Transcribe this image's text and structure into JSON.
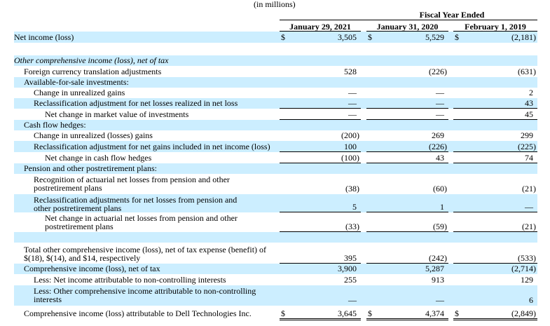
{
  "units_note": "(in millions)",
  "header": {
    "group_label": "Fiscal Year Ended",
    "columns": [
      "January 29, 2021",
      "January 31, 2020",
      "February 1, 2019"
    ]
  },
  "colors": {
    "band": "#cceeff",
    "text": "#000000"
  },
  "rows": [
    {
      "label": "Net income (loss)",
      "values": [
        "3,505",
        "5,529",
        "(2,181)"
      ],
      "currency": true
    },
    {
      "label": "",
      "values": [
        "",
        "",
        ""
      ]
    },
    {
      "label": "Other comprehensive income (loss), net of tax",
      "values": [
        "",
        "",
        ""
      ],
      "italic": true
    },
    {
      "label": "Foreign currency translation adjustments",
      "values": [
        "528",
        "(226)",
        "(631)"
      ]
    },
    {
      "label": "Available-for-sale investments:",
      "values": [
        "",
        "",
        ""
      ]
    },
    {
      "label": "Change in unrealized gains",
      "values": [
        "—",
        "—",
        "2"
      ]
    },
    {
      "label": "Reclassification adjustment for net losses realized in net loss",
      "values": [
        "—",
        "—",
        "43"
      ]
    },
    {
      "label": "Net change in market value of investments",
      "values": [
        "—",
        "—",
        "45"
      ]
    },
    {
      "label": "Cash flow hedges:",
      "values": [
        "",
        "",
        ""
      ]
    },
    {
      "label": "Change in unrealized (losses) gains",
      "values": [
        "(200)",
        "269",
        "299"
      ]
    },
    {
      "label": "Reclassification adjustment for net gains included in net income (loss)",
      "values": [
        "100",
        "(226)",
        "(225)"
      ]
    },
    {
      "label": "Net change in cash flow hedges",
      "values": [
        "(100)",
        "43",
        "74"
      ]
    },
    {
      "label": "Pension and other postretirement plans:",
      "values": [
        "",
        "",
        ""
      ]
    },
    {
      "label": "Recognition of actuarial net losses from pension and other postretirement plans",
      "values": [
        "(38)",
        "(60)",
        "(21)"
      ]
    },
    {
      "label": "Reclassification adjustments for net losses from pension and other postretirement plans",
      "values": [
        "5",
        "1",
        "—"
      ]
    },
    {
      "label": "Net change in actuarial net losses from pension and other postretirement plans",
      "values": [
        "(33)",
        "(59)",
        "(21)"
      ]
    },
    {
      "label": "",
      "values": [
        "",
        "",
        ""
      ]
    },
    {
      "label": "Total other comprehensive income (loss), net of tax expense (benefit) of $(18), $(14), and $14, respectively",
      "values": [
        "395",
        "(242)",
        "(533)"
      ]
    },
    {
      "label": "Comprehensive income (loss), net of tax",
      "values": [
        "3,900",
        "5,287",
        "(2,714)"
      ]
    },
    {
      "label": "Less: Net income attributable to non-controlling interests",
      "values": [
        "255",
        "913",
        "129"
      ]
    },
    {
      "label": "Less: Other comprehensive income attributable to non-controlling interests",
      "values": [
        "—",
        "—",
        "6"
      ]
    },
    {
      "label": "Comprehensive income (loss) attributable to Dell Technologies Inc.",
      "values": [
        "3,645",
        "4,374",
        "(2,849)"
      ],
      "currency": true
    }
  ],
  "currency_symbol": "$"
}
